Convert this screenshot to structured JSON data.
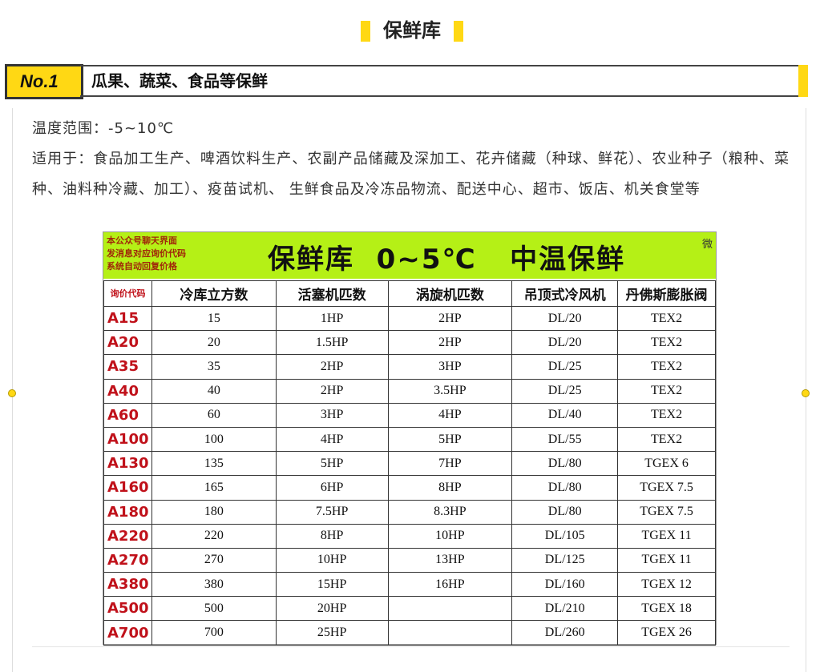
{
  "title": "保鲜库",
  "section": {
    "badge": "No.1",
    "heading": "瓜果、蔬菜、食品等保鲜"
  },
  "temp_range": "温度范围：-5~10℃",
  "applies": "适用于：食品加工生产、啤酒饮料生产、农副产品储藏及深加工、花卉储藏（种球、鲜花）、农业种子（粮种、菜种、油料种冷藏、加工）、疫苗试机、 生鲜食品及冷冻品物流、配送中心、超市、饭店、机关食堂等",
  "image": {
    "note": [
      "本公众号聊天界面",
      "发消息对应询价代码",
      "系统自动回复价格"
    ],
    "banner": "保鲜库  0~5℃   中温保鲜",
    "corner": "微",
    "headers": [
      "询价代码",
      "冷库立方数",
      "活塞机匹数",
      "涡旋机匹数",
      "吊顶式冷风机",
      "丹佛斯膨胀阀"
    ],
    "rows": [
      [
        "A15",
        "15",
        "1HP",
        "2HP",
        "DL/20",
        "TEX2"
      ],
      [
        "A20",
        "20",
        "1.5HP",
        "2HP",
        "DL/20",
        "TEX2"
      ],
      [
        "A35",
        "35",
        "2HP",
        "3HP",
        "DL/25",
        "TEX2"
      ],
      [
        "A40",
        "40",
        "2HP",
        "3.5HP",
        "DL/25",
        "TEX2"
      ],
      [
        "A60",
        "60",
        "3HP",
        "4HP",
        "DL/40",
        "TEX2"
      ],
      [
        "A100",
        "100",
        "4HP",
        "5HP",
        "DL/55",
        "TEX2"
      ],
      [
        "A130",
        "135",
        "5HP",
        "7HP",
        "DL/80",
        "TGEX 6"
      ],
      [
        "A160",
        "165",
        "6HP",
        "8HP",
        "DL/80",
        "TGEX 7.5"
      ],
      [
        "A180",
        "180",
        "7.5HP",
        "8.3HP",
        "DL/80",
        "TGEX 7.5"
      ],
      [
        "A220",
        "220",
        "8HP",
        "10HP",
        "DL/105",
        "TGEX 11"
      ],
      [
        "A270",
        "270",
        "10HP",
        "13HP",
        "DL/125",
        "TGEX 11"
      ],
      [
        "A380",
        "380",
        "15HP",
        "16HP",
        "DL/160",
        "TGEX 12"
      ],
      [
        "A500",
        "500",
        "20HP",
        "",
        "DL/210",
        "TGEX 18"
      ],
      [
        "A700",
        "700",
        "25HP",
        "",
        "DL/260",
        "TGEX 26"
      ]
    ]
  },
  "colors": {
    "accent": "#ffd814",
    "banner": "#b5f016",
    "code": "#c0111a"
  }
}
